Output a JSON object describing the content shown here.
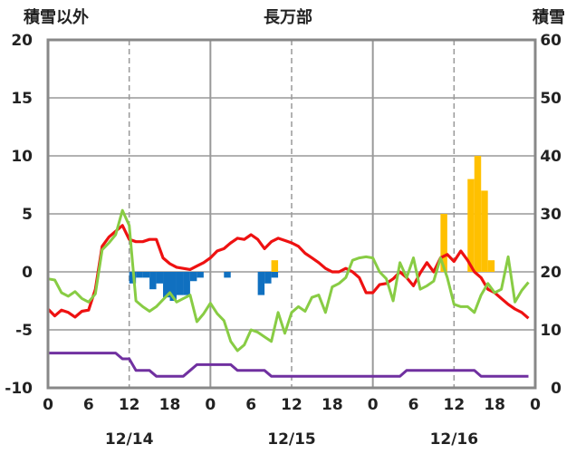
{
  "chart_data": {
    "type": "bar+line",
    "title": "長万部",
    "left_axis_label": "積雪以外",
    "right_axis_label": "積雪",
    "left_ylim": [
      -10,
      20
    ],
    "right_ylim": [
      0,
      60
    ],
    "left_ticks": [
      "20",
      "15",
      "10",
      "5",
      "0",
      "-5",
      "-10"
    ],
    "right_ticks": [
      "60",
      "50",
      "40",
      "30",
      "20",
      "10",
      "0"
    ],
    "x_range_hours": [
      0,
      72
    ],
    "x_tick_labels": [
      "0",
      "6",
      "12",
      "18",
      "0",
      "6",
      "12",
      "18",
      "0",
      "6",
      "12",
      "18",
      "0"
    ],
    "date_labels": [
      {
        "hour": 12,
        "label": "12/14"
      },
      {
        "hour": 36,
        "label": "12/15"
      },
      {
        "hour": 60,
        "label": "12/16"
      }
    ],
    "grid": "dashed at 12h, solid at 0h; horizontal gridlines every 5",
    "colors": {
      "red": "#ee1111",
      "green": "#88cc44",
      "purple": "#7030a0",
      "blue_bar": "#1070c0",
      "orange_bar": "#ffc000",
      "grid": "#999999"
    },
    "series": [
      {
        "type": "line",
        "color": "red",
        "axis": "left",
        "values": [
          -3.2,
          -3.8,
          -3.3,
          -3.5,
          -3.9,
          -3.4,
          -3.3,
          -1.5,
          2.2,
          3.0,
          3.5,
          4.0,
          2.8,
          2.6,
          2.6,
          2.8,
          2.8,
          1.2,
          0.7,
          0.4,
          0.3,
          0.2,
          0.5,
          0.8,
          1.2,
          1.8,
          2.0,
          2.5,
          2.9,
          2.8,
          3.2,
          2.8,
          2.0,
          2.6,
          2.9,
          2.7,
          2.5,
          2.2,
          1.6,
          1.2,
          0.8,
          0.3,
          0.0,
          0.0,
          0.3,
          0.0,
          -0.5,
          -1.8,
          -1.8,
          -1.1,
          -1.0,
          -0.6,
          0.0,
          -0.5,
          -1.2,
          -0.1,
          0.8,
          0.0,
          1.2,
          1.5,
          0.9,
          1.8,
          1.0,
          0.0,
          -0.5,
          -1.5,
          -1.8,
          -2.3,
          -2.8,
          -3.2,
          -3.5,
          -4.0
        ]
      },
      {
        "type": "line",
        "color": "green",
        "axis": "left",
        "values": [
          -0.6,
          -0.7,
          -1.8,
          -2.1,
          -1.7,
          -2.3,
          -2.6,
          -1.9,
          1.9,
          2.5,
          3.2,
          5.3,
          4.0,
          -2.5,
          -3.0,
          -3.4,
          -3.0,
          -2.4,
          -1.8,
          -2.6,
          -2.3,
          -2.0,
          -4.3,
          -3.6,
          -2.7,
          -3.6,
          -4.2,
          -6.0,
          -6.8,
          -6.3,
          -5.0,
          -5.2,
          -5.6,
          -6.0,
          -3.5,
          -5.3,
          -3.5,
          -3.0,
          -3.4,
          -2.2,
          -2.0,
          -3.5,
          -1.3,
          -1.0,
          -0.5,
          1.0,
          1.2,
          1.3,
          1.2,
          0.0,
          -0.6,
          -2.5,
          0.8,
          -0.5,
          1.2,
          -1.5,
          -1.2,
          -0.8,
          1.2,
          -0.5,
          -2.8,
          -3.0,
          -3.0,
          -3.5,
          -2.0,
          -1.0,
          -1.8,
          -1.5,
          1.3,
          -2.6,
          -1.6,
          -0.9
        ]
      },
      {
        "type": "line",
        "color": "purple",
        "axis": "left",
        "values": [
          -7,
          -7,
          -7,
          -7,
          -7,
          -7,
          -7,
          -7,
          -7,
          -7,
          -7,
          -7.5,
          -7.5,
          -8.5,
          -8.5,
          -8.5,
          -9,
          -9,
          -9,
          -9,
          -9,
          -8.5,
          -8,
          -8,
          -8,
          -8,
          -8,
          -8,
          -8.5,
          -8.5,
          -8.5,
          -8.5,
          -8.5,
          -9,
          -9,
          -9,
          -9,
          -9,
          -9,
          -9,
          -9,
          -9,
          -9,
          -9,
          -9,
          -9,
          -9,
          -9,
          -9,
          -9,
          -9,
          -9,
          -9,
          -8.5,
          -8.5,
          -8.5,
          -8.5,
          -8.5,
          -8.5,
          -8.5,
          -8.5,
          -8.5,
          -8.5,
          -8.5,
          -9,
          -9,
          -9,
          -9,
          -9,
          -9,
          -9,
          -9
        ]
      },
      {
        "type": "bar",
        "color": "blue_bar",
        "axis": "left",
        "hours": [
          12,
          13,
          14,
          15,
          16,
          17,
          18,
          19,
          20,
          21,
          22,
          26,
          31,
          32,
          33
        ],
        "values": [
          -1.0,
          -0.5,
          -0.5,
          -1.5,
          -1.0,
          -2.2,
          -2.5,
          -2.0,
          -2.0,
          -0.8,
          -0.5,
          -0.5,
          -2.0,
          -1.0,
          -0.5
        ]
      },
      {
        "type": "bar",
        "color": "orange_bar",
        "axis": "left",
        "hours": [
          33,
          58,
          62,
          63,
          64,
          65
        ],
        "values": [
          1.0,
          5.0,
          8.0,
          10.0,
          7.0,
          1.0
        ]
      }
    ]
  }
}
